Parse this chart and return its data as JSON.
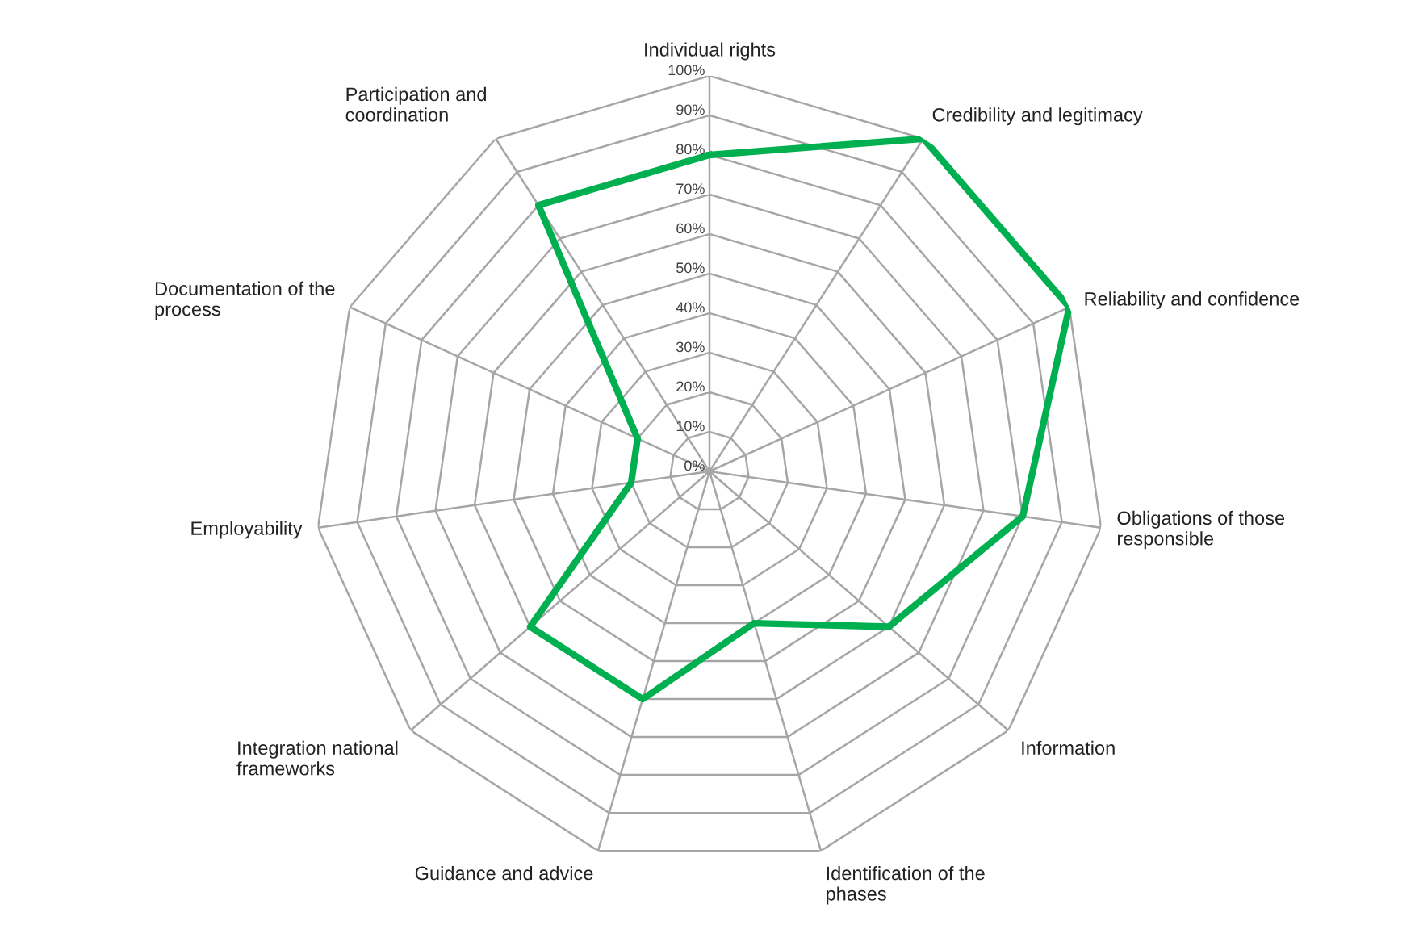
{
  "chart_data": {
    "type": "radar",
    "categories": [
      "Individual rights",
      "Credibility and legitimacy",
      "Reliability and confidence",
      "Obligations of those\nresponsible",
      "Information",
      "Identification of the\nphases",
      "Guidance and advice",
      "Integration national\nframeworks",
      "Employability",
      "Documentation of the\nprocess",
      "Participation and\ncoordination"
    ],
    "series": [
      {
        "color": "#00b050",
        "values": [
          80,
          100,
          100,
          80,
          60,
          40,
          60,
          60,
          20,
          20,
          80
        ]
      }
    ],
    "ylim": [
      0,
      100
    ],
    "yticks": [
      {
        "value": 0,
        "label": "0%"
      },
      {
        "value": 10,
        "label": "10%"
      },
      {
        "value": 20,
        "label": "20%"
      },
      {
        "value": 30,
        "label": "30%"
      },
      {
        "value": 40,
        "label": "40%"
      },
      {
        "value": 50,
        "label": "50%"
      },
      {
        "value": 60,
        "label": "60%"
      },
      {
        "value": 70,
        "label": "70%"
      },
      {
        "value": 80,
        "label": "80%"
      },
      {
        "value": 90,
        "label": "90%"
      },
      {
        "value": 100,
        "label": "100%"
      }
    ],
    "grid": true,
    "legend": false,
    "marker": "none",
    "line_style": "solid"
  }
}
